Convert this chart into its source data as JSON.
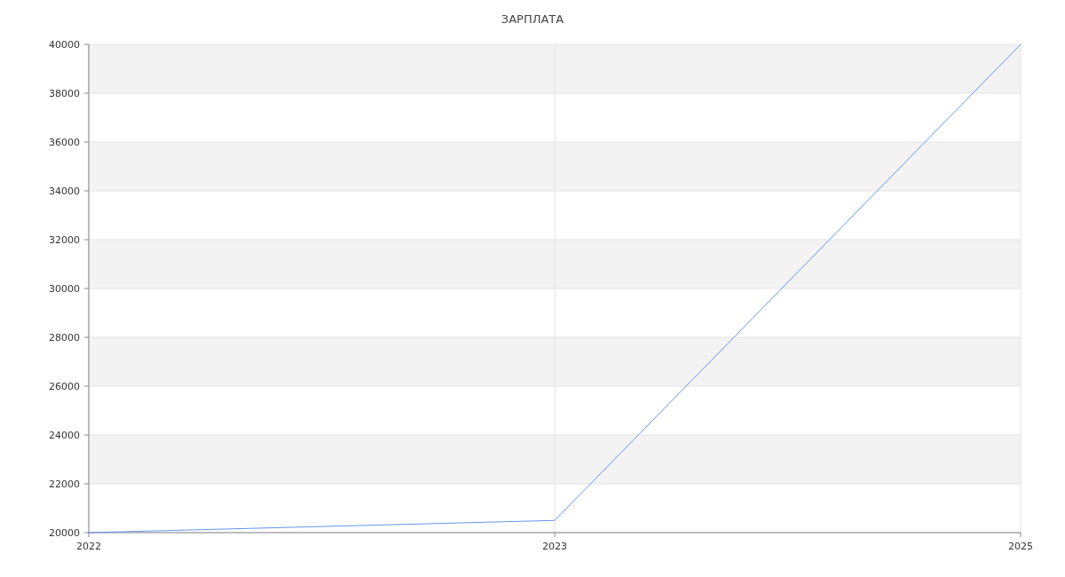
{
  "chart_data": {
    "type": "line",
    "title": "ЗАРПЛАТА",
    "categories": [
      "2022",
      "2023",
      "2025"
    ],
    "series": [
      {
        "color": "#6495ed",
        "values": [
          20000,
          20500,
          40000
        ]
      }
    ],
    "ylim": [
      20000,
      40000
    ],
    "yticks": [
      20000,
      22000,
      24000,
      26000,
      28000,
      30000,
      32000,
      34000,
      36000,
      38000,
      40000
    ],
    "grid": true
  }
}
